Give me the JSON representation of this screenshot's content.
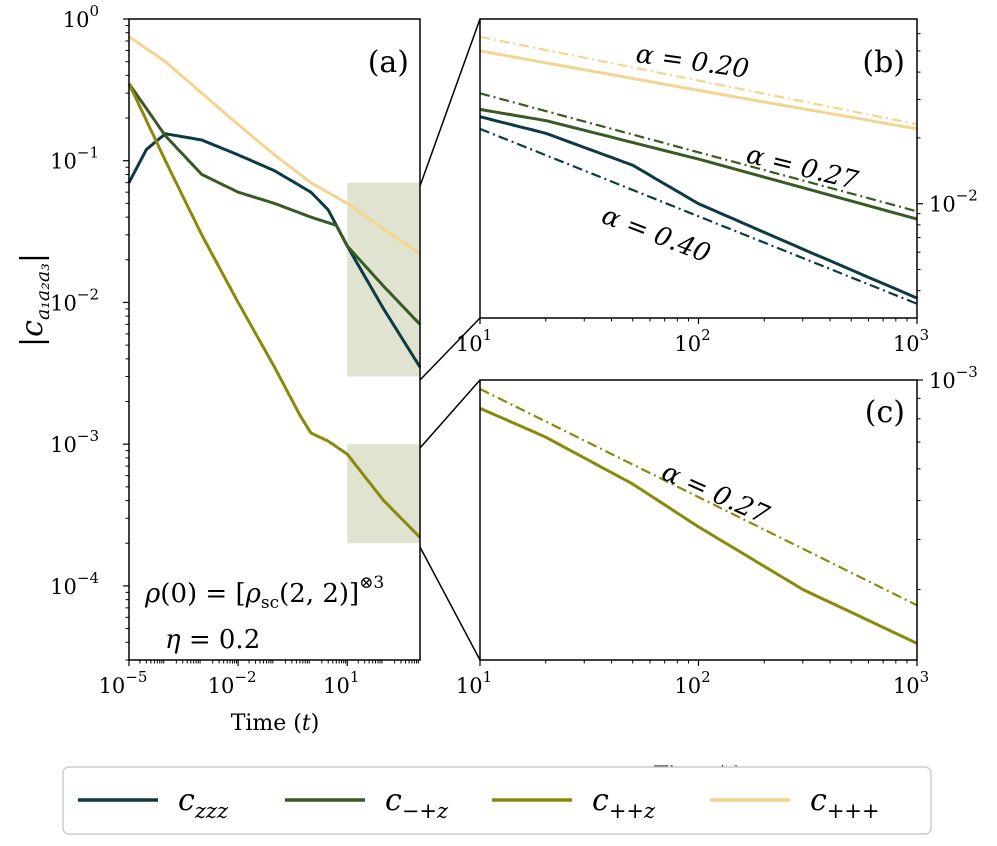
{
  "chart_data": [
    {
      "id": "a",
      "type": "line",
      "panel_label": "(a)",
      "x_scale": "log",
      "y_scale": "log",
      "xlim": [
        1e-05,
        1000
      ],
      "ylim": [
        3e-05,
        1
      ],
      "xlabel": "Time (t)",
      "ylabel": "|c a1a2a3|",
      "x_ticks": [
        {
          "base": "10",
          "exp": "−5",
          "value": 1e-05
        },
        {
          "base": "10",
          "exp": "−2",
          "value": 0.01
        },
        {
          "base": "10",
          "exp": "1",
          "value": 10
        }
      ],
      "y_ticks": [
        {
          "base": "10",
          "exp": "0",
          "value": 1
        },
        {
          "base": "10",
          "exp": "−1",
          "value": 0.1
        },
        {
          "base": "10",
          "exp": "−2",
          "value": 0.01
        },
        {
          "base": "10",
          "exp": "−3",
          "value": 0.001
        },
        {
          "base": "10",
          "exp": "−4",
          "value": 0.0001
        }
      ],
      "annotations": [
        "ρ(0) = [ρsc(2, 2)]⊗3",
        "η = 0.2"
      ],
      "shaded_regions": [
        {
          "x": [
            10,
            1000
          ],
          "y": [
            0.003,
            0.07
          ]
        },
        {
          "x": [
            10,
            1000
          ],
          "y": [
            0.0002,
            0.001
          ]
        }
      ],
      "series": [
        {
          "name": "czzz",
          "color": "#0e3b43",
          "points": [
            [
              1e-05,
              0.07
            ],
            [
              3e-05,
              0.12
            ],
            [
              0.0001,
              0.155
            ],
            [
              0.001,
              0.14
            ],
            [
              0.01,
              0.11
            ],
            [
              0.1,
              0.085
            ],
            [
              1,
              0.06
            ],
            [
              3,
              0.045
            ],
            [
              10,
              0.025
            ],
            [
              100,
              0.009
            ],
            [
              1000,
              0.0035
            ]
          ]
        },
        {
          "name": "c−+z",
          "color": "#3a5a25",
          "points": [
            [
              1e-05,
              0.35
            ],
            [
              0.0001,
              0.15
            ],
            [
              0.001,
              0.08
            ],
            [
              0.01,
              0.06
            ],
            [
              0.1,
              0.05
            ],
            [
              1,
              0.04
            ],
            [
              5,
              0.035
            ],
            [
              10,
              0.025
            ],
            [
              100,
              0.013
            ],
            [
              1000,
              0.007
            ]
          ]
        },
        {
          "name": "c++z",
          "color": "#8a8a0a",
          "points": [
            [
              1e-05,
              0.35
            ],
            [
              0.0001,
              0.1
            ],
            [
              0.001,
              0.03
            ],
            [
              0.01,
              0.01
            ],
            [
              0.1,
              0.0035
            ],
            [
              0.5,
              0.0016
            ],
            [
              1,
              0.0012
            ],
            [
              3,
              0.00105
            ],
            [
              10,
              0.00085
            ],
            [
              100,
              0.0004
            ],
            [
              1000,
              0.00022
            ]
          ]
        },
        {
          "name": "c+++",
          "color": "#f2d590",
          "points": [
            [
              1e-05,
              0.75
            ],
            [
              0.0001,
              0.5
            ],
            [
              0.001,
              0.3
            ],
            [
              0.01,
              0.18
            ],
            [
              0.1,
              0.11
            ],
            [
              1,
              0.07
            ],
            [
              10,
              0.05
            ],
            [
              100,
              0.033
            ],
            [
              1000,
              0.022
            ]
          ]
        }
      ]
    },
    {
      "id": "b",
      "type": "line",
      "panel_label": "(b)",
      "x_scale": "log",
      "y_scale": "log",
      "xlim": [
        10,
        1000
      ],
      "ylim": [
        0.003,
        0.07
      ],
      "x_ticks": [
        {
          "base": "10",
          "exp": "1",
          "value": 10
        },
        {
          "base": "10",
          "exp": "2",
          "value": 100
        },
        {
          "base": "10",
          "exp": "3",
          "value": 1000
        }
      ],
      "y_ticks": [
        {
          "base": "10",
          "exp": "−2",
          "value": 0.01
        }
      ],
      "series": [
        {
          "name": "czzz",
          "color": "#0e3b43",
          "points": [
            [
              10,
              0.025
            ],
            [
              20,
              0.021
            ],
            [
              50,
              0.015
            ],
            [
              100,
              0.01
            ],
            [
              300,
              0.0062
            ],
            [
              1000,
              0.0037
            ]
          ]
        },
        {
          "name": "c−+z",
          "color": "#3a5a25",
          "points": [
            [
              10,
              0.027
            ],
            [
              20,
              0.024
            ],
            [
              100,
              0.016
            ],
            [
              1000,
              0.0085
            ]
          ]
        },
        {
          "name": "c+++",
          "color": "#f2d590",
          "points": [
            [
              10,
              0.05
            ],
            [
              100,
              0.033
            ],
            [
              1000,
              0.022
            ]
          ]
        }
      ],
      "fits": [
        {
          "alpha_label": "α = 0.20",
          "alpha": 0.2,
          "color": "#f2d590",
          "y_at_10": 0.058
        },
        {
          "alpha_label": "α = 0.27",
          "alpha": 0.27,
          "color": "#3a5a25",
          "y_at_10": 0.032
        },
        {
          "alpha_label": "α = 0.40",
          "alpha": 0.4,
          "color": "#0e3b43",
          "y_at_10": 0.022
        }
      ]
    },
    {
      "id": "c",
      "type": "line",
      "panel_label": "(c)",
      "x_scale": "log",
      "y_scale": "log",
      "xlim": [
        10,
        1000
      ],
      "ylim": [
        0.0002,
        0.001
      ],
      "xlabel": "Time (t)",
      "x_ticks": [
        {
          "base": "10",
          "exp": "1",
          "value": 10
        },
        {
          "base": "10",
          "exp": "2",
          "value": 100
        },
        {
          "base": "10",
          "exp": "3",
          "value": 1000
        }
      ],
      "y_ticks": [
        {
          "base": "10",
          "exp": "−3",
          "value": 0.001
        }
      ],
      "series": [
        {
          "name": "c++z",
          "color": "#8a8a0a",
          "points": [
            [
              10,
              0.00085
            ],
            [
              20,
              0.00072
            ],
            [
              50,
              0.00055
            ],
            [
              100,
              0.00043
            ],
            [
              300,
              0.0003
            ],
            [
              1000,
              0.00022
            ]
          ]
        }
      ],
      "fits": [
        {
          "alpha_label": "α = 0.27",
          "alpha": 0.27,
          "color": "#8a8a0a",
          "y_at_10": 0.00095
        }
      ]
    }
  ],
  "legend": [
    {
      "label": "c",
      "sub": "zzz",
      "color": "#0e3b43"
    },
    {
      "label": "c",
      "sub": "−+z",
      "color": "#3a5a25"
    },
    {
      "label": "c",
      "sub": "++z",
      "color": "#8a8a0a"
    },
    {
      "label": "c",
      "sub": "+++",
      "color": "#f2d590"
    }
  ],
  "shade_color": "#dfe3cf"
}
